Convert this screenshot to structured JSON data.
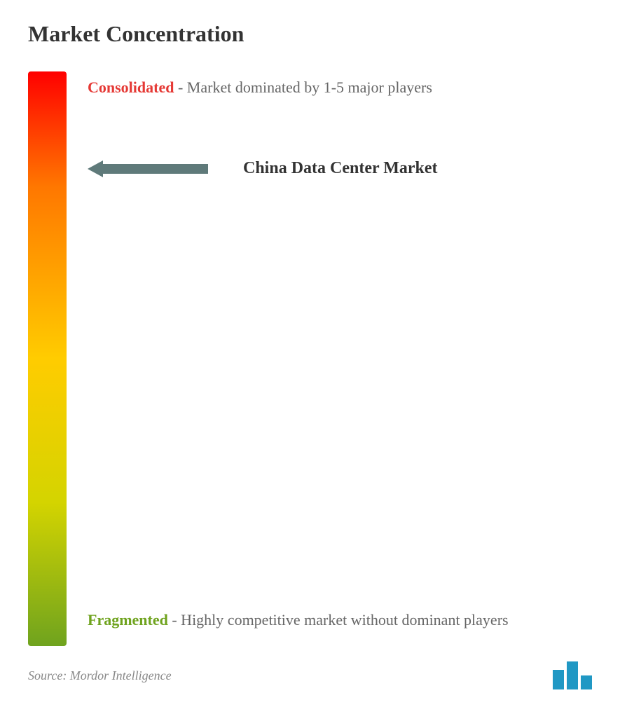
{
  "title": "Market Concentration",
  "gradient": {
    "top_color": "#ff0000",
    "upper_mid_color": "#ff7700",
    "mid_color": "#ffcc00",
    "lower_mid_color": "#d4d400",
    "bottom_color": "#6fa31e"
  },
  "consolidated": {
    "keyword": "Consolidated",
    "keyword_color": "#e53935",
    "description": "- Market dominated by 1-5 major players"
  },
  "fragmented": {
    "keyword": "Fragmented",
    "keyword_color": "#6fa31e",
    "description": "- Highly competitive market without dominant players"
  },
  "market_pointer": {
    "label": "China Data Center Market",
    "arrow_color": "#5f7a7a",
    "position_percent": 15
  },
  "footer": {
    "source": "Source: Mordor Intelligence",
    "logo_color": "#2098c4",
    "logo_bars": [
      {
        "width": 16,
        "height": 28
      },
      {
        "width": 16,
        "height": 40
      },
      {
        "width": 16,
        "height": 20
      }
    ]
  },
  "typography": {
    "title_fontsize": 32,
    "body_fontsize": 22,
    "market_label_fontsize": 24,
    "source_fontsize": 18,
    "title_color": "#333333",
    "body_color": "#666666",
    "source_color": "#888888"
  }
}
